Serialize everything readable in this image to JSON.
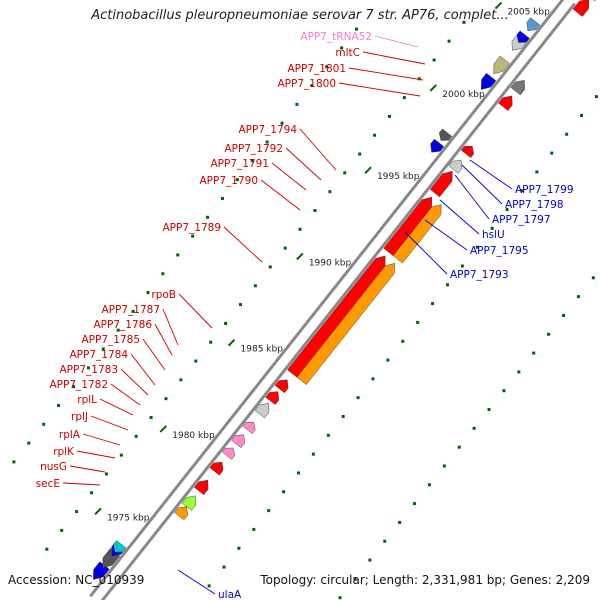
{
  "title": "Actinobacillus pleuropneumoniae serovar 7 str. AP76, complet...",
  "accession": "Accession: NC_010939",
  "summary": "Topology: circular; Length: 2,331,981 bp; Genes: 2,209",
  "colors": {
    "red": "#ff0000",
    "blue": "#0000e0",
    "pink": "#ff8ac8",
    "orange": "#ff9900",
    "gray": "#999999",
    "olive": "#bdb67a",
    "backbone": "#888888",
    "tick": "#006400"
  },
  "scale_labels": [
    {
      "text": "1975 kbp"
    },
    {
      "text": "1980 kbp"
    },
    {
      "text": "1985 kbp"
    },
    {
      "text": "1990 kbp"
    },
    {
      "text": "1995 kbp"
    },
    {
      "text": "2000 kbp"
    },
    {
      "text": "2005 kbp"
    }
  ],
  "left_labels": [
    {
      "text": "APP7_tRNA52",
      "color": "#ff7ac8"
    },
    {
      "text": "mltC",
      "color": "#cc0000"
    },
    {
      "text": "APP7_1801",
      "color": "#cc0000"
    },
    {
      "text": "APP7_1800",
      "color": "#cc0000"
    },
    {
      "text": "APP7_1794",
      "color": "#cc0000"
    },
    {
      "text": "APP7_1792",
      "color": "#cc0000"
    },
    {
      "text": "APP7_1791",
      "color": "#cc0000"
    },
    {
      "text": "APP7_1790",
      "color": "#cc0000"
    },
    {
      "text": "APP7_1789",
      "color": "#cc0000"
    },
    {
      "text": "rpoB",
      "color": "#cc0000"
    },
    {
      "text": "APP7_1787",
      "color": "#cc0000"
    },
    {
      "text": "APP7_1786",
      "color": "#cc0000"
    },
    {
      "text": "APP7_1785",
      "color": "#cc0000"
    },
    {
      "text": "APP7_1784",
      "color": "#cc0000"
    },
    {
      "text": "APP7_1783",
      "color": "#cc0000"
    },
    {
      "text": "APP7_1782",
      "color": "#cc0000"
    },
    {
      "text": "rplL",
      "color": "#cc0000"
    },
    {
      "text": "rplJ",
      "color": "#cc0000"
    },
    {
      "text": "rplA",
      "color": "#cc0000"
    },
    {
      "text": "rplK",
      "color": "#cc0000"
    },
    {
      "text": "nusG",
      "color": "#cc0000"
    },
    {
      "text": "secE",
      "color": "#cc0000"
    }
  ],
  "right_labels": [
    {
      "text": "APP7_1799",
      "color": "#0000cc"
    },
    {
      "text": "APP7_1798",
      "color": "#0000cc"
    },
    {
      "text": "APP7_1797",
      "color": "#0000cc"
    },
    {
      "text": "hslU",
      "color": "#0000cc"
    },
    {
      "text": "APP7_1795",
      "color": "#0000cc"
    },
    {
      "text": "APP7_1793",
      "color": "#0000cc"
    },
    {
      "text": "ulaA",
      "color": "#0000cc"
    }
  ]
}
